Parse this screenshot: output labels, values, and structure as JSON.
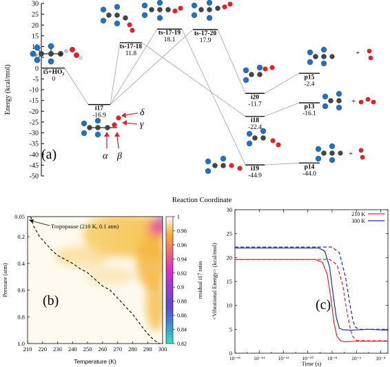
{
  "chart_data": [
    {
      "type": "line",
      "panel_label": "(a)",
      "ylabel": "Energy (kcal/mol)",
      "xlabel": "Reaction Coordinate",
      "ylim": [
        -50,
        30
      ],
      "yticks": [
        30,
        25,
        20,
        15,
        10,
        5,
        0,
        -5,
        -10,
        -15,
        -20,
        -25,
        -30,
        -35,
        -40,
        -45,
        -50
      ],
      "species": [
        {
          "name": "i5+HO₂",
          "value": "0",
          "energy": 0
        },
        {
          "name": "i17",
          "value": "-16.9",
          "energy": -16.9
        },
        {
          "name": "ts-17-18",
          "value": "11.8",
          "energy": 11.8
        },
        {
          "name": "ts-17-19",
          "value": "18.1",
          "energy": 18.1
        },
        {
          "name": "ts-17-20",
          "value": "17.9",
          "energy": 17.9
        },
        {
          "name": "i20",
          "value": "-11.7",
          "energy": -11.7
        },
        {
          "name": "i18",
          "value": "-22.4",
          "energy": -22.4
        },
        {
          "name": "i19",
          "value": "-44.9",
          "energy": -44.9
        },
        {
          "name": "p15",
          "value": "-2.4",
          "energy": -2.4
        },
        {
          "name": "p13",
          "value": "-16.1",
          "energy": -16.1
        },
        {
          "name": "p14",
          "value": "-44.0",
          "energy": -44.0
        }
      ],
      "site_labels": [
        "α",
        "β",
        "γ",
        "δ"
      ],
      "plus_sign": "+"
    },
    {
      "type": "heatmap",
      "panel_label": "(b)",
      "xlabel": "Temperature (K)",
      "ylabel": "Pressure (atm)",
      "xticks": [
        210,
        220,
        230,
        240,
        250,
        260,
        270,
        280,
        290,
        300
      ],
      "yticks": [
        "0.05",
        "0.2",
        "0.4",
        "0.6",
        "0.8",
        "1.0"
      ],
      "colorbar_label": "residual i17 ratio",
      "colorbar_ticks": [
        "1",
        "0.98",
        "0.96",
        "0.94",
        "0.92",
        "0.9",
        "0.88",
        "0.86",
        "0.84",
        "0.82"
      ],
      "colorbar_range": [
        0.82,
        1.0
      ],
      "annotation": "Tropopause (210 K, 0.1 atm)",
      "dashed_curve": {
        "x": [
          212,
          214,
          218,
          222,
          226,
          230,
          235,
          240,
          245,
          250,
          255,
          260,
          265,
          270,
          275,
          280,
          284,
          288,
          292,
          295,
          298
        ],
        "y": [
          0.05,
          0.12,
          0.2,
          0.25,
          0.3,
          0.34,
          0.37,
          0.4,
          0.44,
          0.47,
          0.52,
          0.57,
          0.6,
          0.66,
          0.72,
          0.78,
          0.84,
          0.9,
          0.95,
          0.98,
          1.0
        ]
      }
    },
    {
      "type": "line",
      "panel_label": "(c)",
      "xlabel": "Time (s)",
      "ylabel": "<Vibrational Energy> (kcal/mol)",
      "ylim": [
        0,
        30
      ],
      "yticks": [
        0,
        5,
        10,
        15,
        20,
        25,
        30
      ],
      "xscale": "log",
      "xticks": [
        "10⁻¹⁶",
        "10⁻¹⁴",
        "10⁻¹²",
        "10⁻¹⁰",
        "10⁻⁸",
        "10⁻⁶",
        "10⁻⁴"
      ],
      "xlim_log10": [
        -16,
        -3.4
      ],
      "series": [
        {
          "name": "210 K",
          "color": "#e8202a",
          "style": "solid",
          "plateau": 19.6,
          "x_log10": [
            -16,
            -9.4,
            -8.8,
            -8.4,
            -8.1,
            -7.85,
            -7.6,
            -7.3,
            -7.0,
            -6.0,
            -3.4
          ],
          "y": [
            19.6,
            19.6,
            19.0,
            16.5,
            11.5,
            6.5,
            3.5,
            2.6,
            2.4,
            2.5,
            2.5
          ]
        },
        {
          "name": "300 K",
          "color": "#1c2aa0",
          "style": "solid",
          "plateau": 22.0,
          "x_log10": [
            -16,
            -9.1,
            -8.6,
            -8.2,
            -7.9,
            -7.65,
            -7.4,
            -7.1,
            -6.5,
            -5.0,
            -3.4
          ],
          "y": [
            22.0,
            22.0,
            21.3,
            18.0,
            12.0,
            7.5,
            5.2,
            4.9,
            4.8,
            5.0,
            4.8
          ]
        },
        {
          "name": "",
          "color": "#e8202a",
          "style": "dashed",
          "x_log10": [
            -16,
            -8.2,
            -7.6,
            -7.1,
            -6.8,
            -6.5,
            -6.3,
            -6.0,
            -5.0,
            -3.4
          ],
          "y": [
            19.6,
            19.6,
            18.5,
            14.0,
            9.0,
            5.0,
            3.5,
            2.7,
            2.6,
            2.6
          ]
        },
        {
          "name": "",
          "color": "#1c2aa0",
          "style": "dashed",
          "x_log10": [
            -16,
            -8.0,
            -7.4,
            -6.9,
            -6.55,
            -6.3,
            -6.1,
            -5.8,
            -4.5,
            -3.4
          ],
          "y": [
            22.2,
            22.2,
            21.0,
            16.0,
            10.5,
            7.0,
            5.5,
            5.0,
            5.0,
            5.0
          ]
        }
      ]
    }
  ]
}
